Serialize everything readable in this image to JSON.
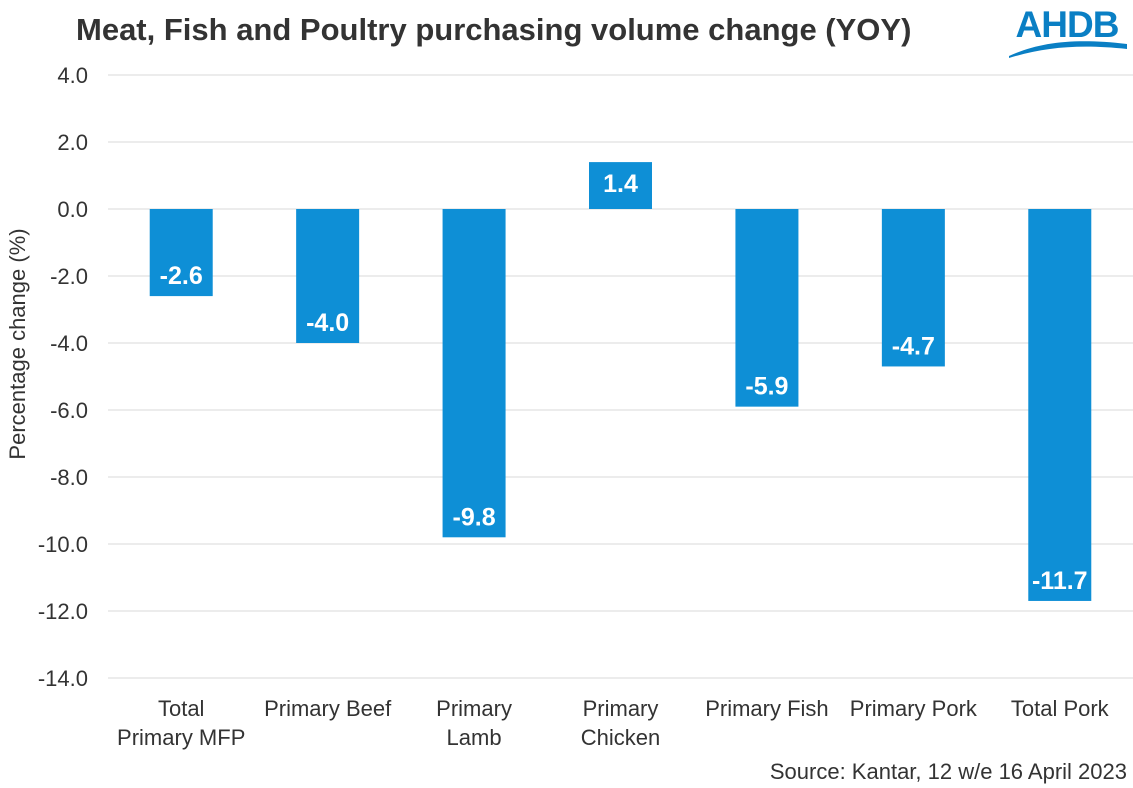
{
  "header": {
    "title": "Meat, Fish and Poultry purchasing volume change (YOY)",
    "logo_text": "AHDB",
    "logo_color": "#0a7fc4"
  },
  "footer": {
    "source": "Source: Kantar, 12 w/e 16 April 2023"
  },
  "colors": {
    "bar": "#0e8fd6",
    "grid": "#d9d9d9",
    "text": "#333333"
  },
  "chart_data": {
    "type": "bar",
    "title": "Meat, Fish and Poultry purchasing volume change (YOY)",
    "xlabel": "",
    "ylabel": "Percentage change (%)",
    "ylim": [
      -14.0,
      4.0
    ],
    "yticks": [
      4.0,
      2.0,
      0.0,
      -2.0,
      -4.0,
      -6.0,
      -8.0,
      -10.0,
      -12.0,
      -14.0
    ],
    "ytick_labels": [
      "4.0",
      "2.0",
      "0.0",
      "-2.0",
      "-4.0",
      "-6.0",
      "-8.0",
      "-10.0",
      "-12.0",
      "-14.0"
    ],
    "grid": true,
    "legend": "none",
    "categories": [
      [
        "Total",
        "Primary MFP"
      ],
      [
        "Primary Beef"
      ],
      [
        "Primary",
        "Lamb"
      ],
      [
        "Primary",
        "Chicken"
      ],
      [
        "Primary Fish"
      ],
      [
        "Primary Pork"
      ],
      [
        "Total Pork"
      ]
    ],
    "values": [
      -2.6,
      -4.0,
      -9.8,
      1.4,
      -5.9,
      -4.7,
      -11.7
    ],
    "data_labels": [
      "-2.6",
      "-4.0",
      "-9.8",
      "1.4",
      "-5.9",
      "-4.7",
      "-11.7"
    ]
  }
}
